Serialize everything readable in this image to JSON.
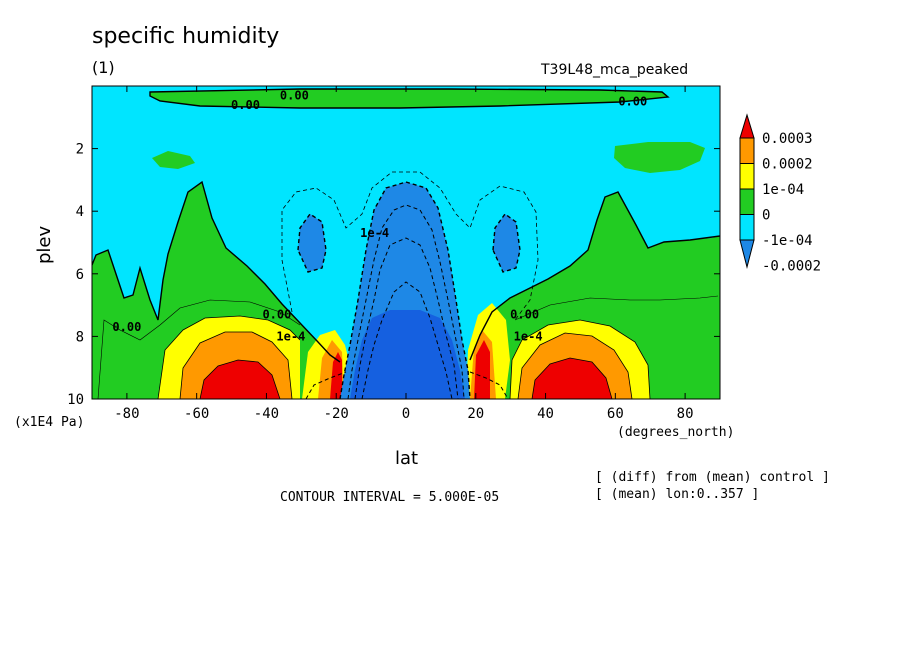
{
  "header": {
    "title": "specific humidity",
    "subtitle": "(1)",
    "run_name": "T39L48_mca_peaked"
  },
  "footer": {
    "contour_interval": "CONTOUR INTERVAL = 5.000E-05",
    "note_diff": "[ (diff) from (mean) control ]",
    "note_mean": "[ (mean) lon:0..357 ]"
  },
  "colors": {
    "c_neg2": "#1e88e6",
    "c_neg1": "#00e5ff",
    "c_zero": "#22cc22",
    "c_pos1": "#ffff00",
    "c_pos2": "#ff9900",
    "c_pos3": "#ee0000",
    "deep": "#1560e0"
  },
  "chart_data": {
    "type": "contour",
    "title": "specific humidity",
    "xlabel": "lat",
    "xlabel_units": "(degrees_north)",
    "ylabel": "plev",
    "ylabel_units": "(x1E4 Pa)",
    "xlim": [
      -90,
      90
    ],
    "ylim": [
      10,
      0
    ],
    "y_inverted": true,
    "x_ticks": [
      -80,
      -60,
      -40,
      -20,
      0,
      20,
      40,
      60,
      80
    ],
    "y_ticks": [
      2,
      4,
      6,
      8,
      10
    ],
    "colorbar_labels": [
      "0.0003",
      "0.0002",
      "1e-04",
      "0",
      "-1e-04",
      "-0.0002"
    ],
    "contour_interval": 5e-05,
    "contour_labels": [
      {
        "text": "0.00",
        "lat": -46,
        "plev": 0.6
      },
      {
        "text": "0.00",
        "lat": -32,
        "plev": 0.3
      },
      {
        "text": "0.00",
        "lat": 65,
        "plev": 0.5
      },
      {
        "text": "0.00",
        "lat": -80,
        "plev": 7.7
      },
      {
        "text": "0.00",
        "lat": -37,
        "plev": 7.3
      },
      {
        "text": "0.00",
        "lat": 34,
        "plev": 7.3
      },
      {
        "text": "1e-4",
        "lat": -33,
        "plev": 8.0
      },
      {
        "text": "1e-4",
        "lat": 35,
        "plev": 8.0
      },
      {
        "text": "1e-4",
        "lat": -9,
        "plev": 4.7
      }
    ]
  }
}
